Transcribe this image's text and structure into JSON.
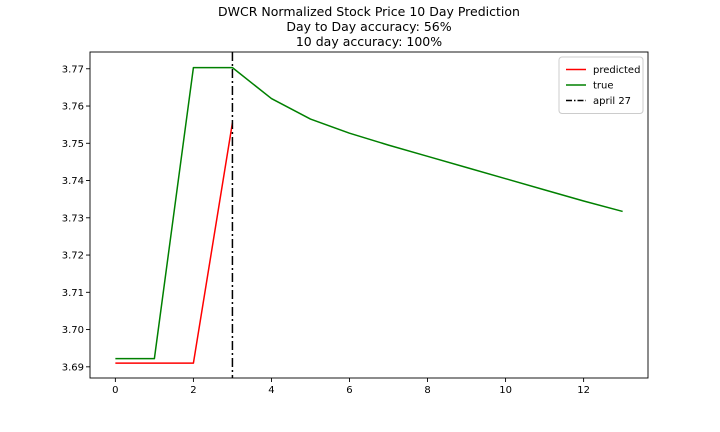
{
  "chart_data": {
    "type": "line",
    "title_lines": [
      "DWCR Normalized Stock Price 10 Day Prediction",
      "Day to Day accuracy: 56%",
      "10 day accuracy: 100%"
    ],
    "xlabel": "",
    "ylabel": "",
    "xlim": [
      -0.65,
      13.65
    ],
    "ylim": [
      3.687,
      3.7745
    ],
    "x_ticks": [
      0,
      2,
      4,
      6,
      8,
      10,
      12
    ],
    "y_ticks": [
      3.69,
      3.7,
      3.71,
      3.72,
      3.73,
      3.74,
      3.75,
      3.76,
      3.77
    ],
    "y_tick_labels": [
      "3.69",
      "3.70",
      "3.71",
      "3.72",
      "3.73",
      "3.74",
      "3.75",
      "3.76",
      "3.77"
    ],
    "grid": false,
    "legend_position": "top-right",
    "series": [
      {
        "name": "predicted",
        "color": "#ff0000",
        "x": [
          0,
          1,
          2,
          3
        ],
        "y": [
          3.691,
          3.691,
          3.691,
          3.7555
        ]
      },
      {
        "name": "true",
        "color": "#008000",
        "x": [
          0,
          1,
          2,
          3,
          4,
          5,
          6,
          7,
          8,
          9,
          10,
          11,
          12,
          13
        ],
        "y": [
          3.6922,
          3.6922,
          3.7703,
          3.7703,
          3.762,
          3.7565,
          3.7527,
          3.7495,
          3.7465,
          3.7435,
          3.7405,
          3.7375,
          3.7345,
          3.7317
        ]
      }
    ],
    "vline": {
      "x": 3,
      "label": "april 27",
      "color": "#000000",
      "style": "dashdot"
    }
  }
}
